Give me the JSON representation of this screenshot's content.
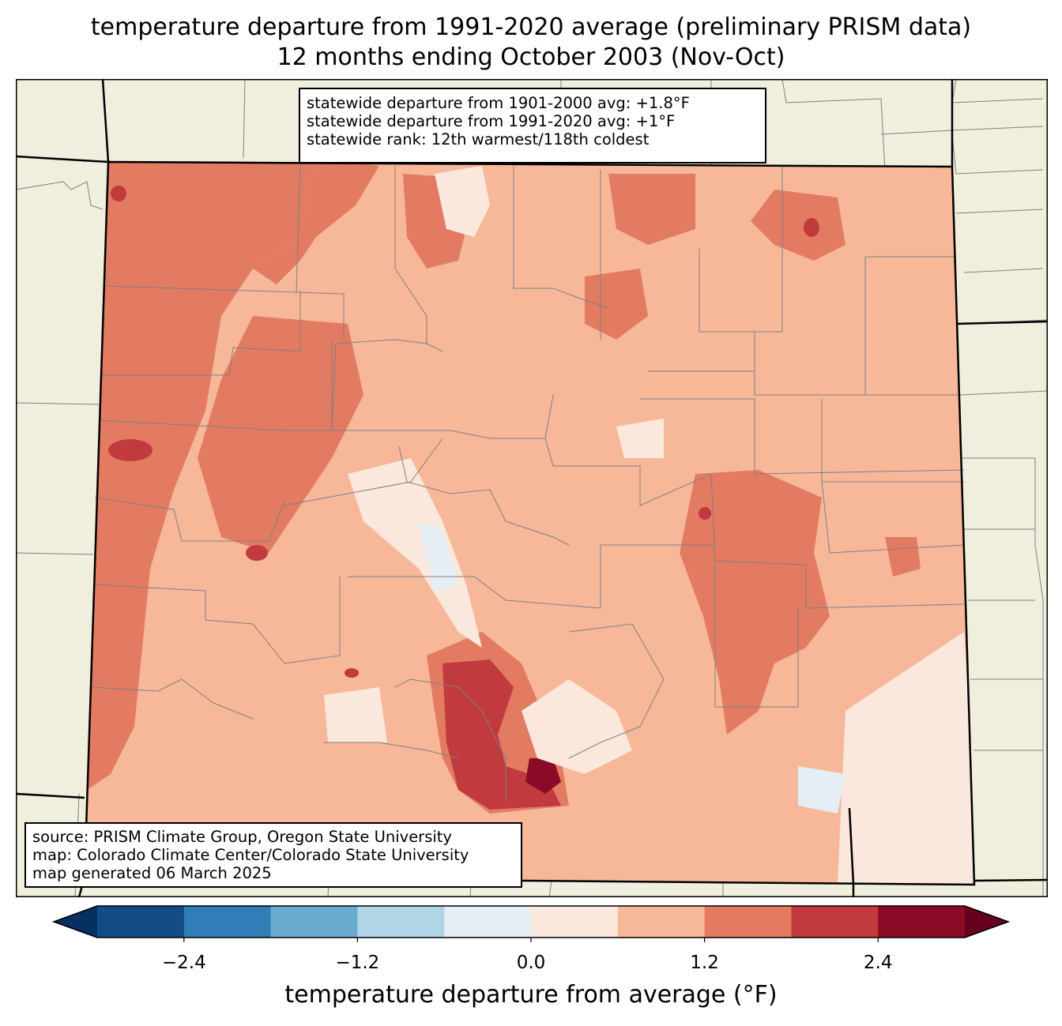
{
  "title": {
    "line1": "temperature departure from 1991-2020 average (preliminary PRISM data)",
    "line2": "12 months ending October 2003 (Nov-Oct)"
  },
  "stats": {
    "line1": "statewide departure from 1901-2000 avg: +1.8°F",
    "line2": "statewide departure from 1991-2020 avg: +1°F",
    "line3": "statewide rank: 12th warmest/118th coldest"
  },
  "credits": {
    "line1": "source: PRISM Climate Group, Oregon State University",
    "line2": "map: Colorado Climate Center/Colorado State University",
    "line3": "map generated 06 March 2025"
  },
  "colorbar": {
    "label": "temperature departure from average (°F)",
    "ticks": [
      "−2.4",
      "−1.2",
      "0.0",
      "1.2",
      "2.4"
    ],
    "tick_values": [
      -2.4,
      -1.2,
      0.0,
      1.2,
      2.4
    ],
    "bounds": [
      -3.0,
      3.0
    ],
    "step": 0.6,
    "colors": {
      "extend_low": "#053061",
      "bins": [
        "#134b87",
        "#327cb7",
        "#6aacd0",
        "#b0d5e7",
        "#e4eef4",
        "#fae8dd",
        "#f7b799",
        "#e27b62",
        "#c13a3e",
        "#8a0b25"
      ],
      "extend_high": "#67001f"
    }
  },
  "map_colors": {
    "background": "#f0eedc",
    "county_lines": "#808080",
    "state_lines": "#000000"
  }
}
